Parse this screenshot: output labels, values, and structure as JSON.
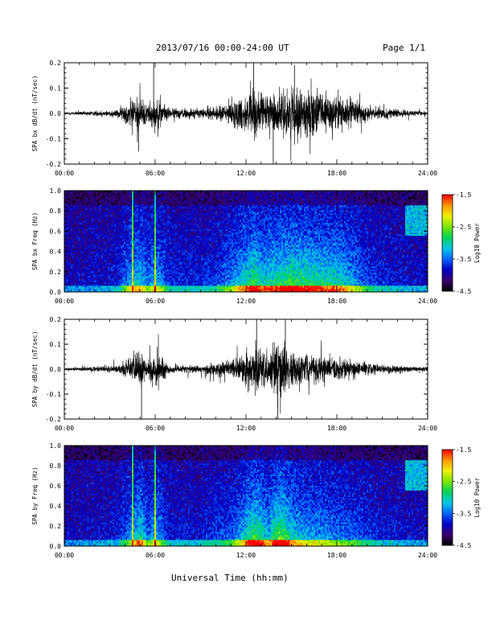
{
  "header": {
    "title": "2013/07/16  00:00-24:00 UT",
    "page": "Page 1/1"
  },
  "xaxis_title": "Universal Time (hh:mm)",
  "chart_data": [
    {
      "type": "line",
      "ylabel": "SPA bx dB/dt (nT/sec)",
      "xlim": [
        "00:00",
        "24:00"
      ],
      "ylim": [
        -0.2,
        0.2
      ],
      "yticks": [
        "0.2",
        "0.1",
        "0.0",
        "-0.1",
        "-0.2"
      ],
      "xticks": [
        "00:00",
        "06:00",
        "12:00",
        "18:00",
        "24:00"
      ],
      "envelope": {
        "hours": [
          0,
          2,
          3.5,
          4.5,
          5.0,
          5.5,
          6.0,
          7,
          9,
          10,
          11,
          12,
          12.5,
          13,
          14,
          15,
          16,
          17,
          18,
          19,
          20,
          21,
          22,
          23,
          24
        ],
        "amplitude": [
          0.01,
          0.02,
          0.03,
          0.12,
          0.13,
          0.08,
          0.12,
          0.04,
          0.04,
          0.05,
          0.09,
          0.15,
          0.19,
          0.15,
          0.16,
          0.19,
          0.17,
          0.16,
          0.15,
          0.11,
          0.06,
          0.04,
          0.03,
          0.02,
          0.02
        ]
      },
      "color": "#000000"
    },
    {
      "type": "heatmap",
      "ylabel": "SPA bx Freq (Hz)",
      "xlim": [
        "00:00",
        "24:00"
      ],
      "ylim": [
        0.0,
        1.0
      ],
      "yticks": [
        "1.0",
        "0.8",
        "0.6",
        "0.4",
        "0.2",
        "0.0"
      ],
      "xticks": [
        "00:00",
        "06:00",
        "12:00",
        "18:00",
        "24:00"
      ],
      "colorbar": {
        "label": "Log10 Power",
        "ticks": [
          "-1.5",
          "-2.5",
          "-3.5",
          "-4.5"
        ],
        "range": [
          -4.5,
          -1.5
        ],
        "colors": [
          "#000000",
          "#3b006e",
          "#0000c8",
          "#0064ff",
          "#00c8e6",
          "#00d25a",
          "#78e600",
          "#f0f000",
          "#ff9600",
          "#ff0000"
        ]
      }
    },
    {
      "type": "line",
      "ylabel": "SPA by dB/dt (nT/sec)",
      "xlim": [
        "00:00",
        "24:00"
      ],
      "ylim": [
        -0.2,
        0.2
      ],
      "yticks": [
        "0.2",
        "0.1",
        "0.0",
        "-0.1",
        "-0.2"
      ],
      "xticks": [
        "00:00",
        "06:00",
        "12:00",
        "18:00",
        "24:00"
      ],
      "envelope": {
        "hours": [
          0,
          2,
          3.5,
          4.5,
          5.0,
          5.5,
          6.0,
          7,
          9,
          10,
          11,
          12,
          12.5,
          13,
          13.5,
          14,
          14.5,
          15,
          16,
          17,
          18,
          19,
          20,
          21,
          22,
          23,
          24
        ],
        "amplitude": [
          0.01,
          0.02,
          0.03,
          0.1,
          0.16,
          0.07,
          0.12,
          0.03,
          0.03,
          0.05,
          0.06,
          0.14,
          0.19,
          0.17,
          0.12,
          0.2,
          0.2,
          0.14,
          0.11,
          0.1,
          0.08,
          0.07,
          0.05,
          0.03,
          0.03,
          0.02,
          0.02
        ]
      },
      "color": "#000000"
    },
    {
      "type": "heatmap",
      "ylabel": "SPA by Freq (Hz)",
      "xlim": [
        "00:00",
        "24:00"
      ],
      "ylim": [
        0.0,
        1.0
      ],
      "yticks": [
        "1.0",
        "0.8",
        "0.6",
        "0.4",
        "0.2",
        "0.0"
      ],
      "xticks": [
        "00:00",
        "06:00",
        "12:00",
        "18:00",
        "24:00"
      ],
      "colorbar": {
        "label": "Log10 Power",
        "ticks": [
          "-1.5",
          "-2.5",
          "-3.5",
          "-4.5"
        ],
        "range": [
          -4.5,
          -1.5
        ],
        "colors": [
          "#000000",
          "#3b006e",
          "#0000c8",
          "#0064ff",
          "#00c8e6",
          "#00d25a",
          "#78e600",
          "#f0f000",
          "#ff9600",
          "#ff0000"
        ]
      }
    }
  ]
}
